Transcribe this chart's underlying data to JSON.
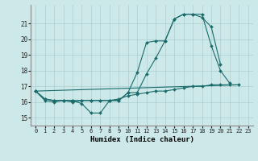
{
  "xlabel": "Humidex (Indice chaleur)",
  "xlim": [
    -0.5,
    23.5
  ],
  "ylim": [
    14.5,
    22.2
  ],
  "yticks": [
    15,
    16,
    17,
    18,
    19,
    20,
    21
  ],
  "xticks": [
    0,
    1,
    2,
    3,
    4,
    5,
    6,
    7,
    8,
    9,
    10,
    11,
    12,
    13,
    14,
    15,
    16,
    17,
    18,
    19,
    20,
    21,
    22,
    23
  ],
  "bg_color": "#cce8e8",
  "grid_color": "#aacfcf",
  "line_color": "#1a6b6b",
  "lines": [
    {
      "x": [
        0,
        1,
        2,
        3,
        4,
        5,
        6,
        7,
        8,
        9,
        10,
        11,
        12,
        13,
        14,
        15,
        16,
        17,
        18,
        19,
        20,
        21
      ],
      "y": [
        16.7,
        16.1,
        16.0,
        16.1,
        16.1,
        15.9,
        15.3,
        15.3,
        16.1,
        16.1,
        16.6,
        17.9,
        19.8,
        19.9,
        19.9,
        21.3,
        21.6,
        21.6,
        21.6,
        19.6,
        18.0,
        17.2
      ],
      "marker": true
    },
    {
      "x": [
        0,
        1,
        2,
        3,
        4,
        5,
        6,
        7,
        8,
        9,
        10,
        11,
        12,
        13,
        14,
        15,
        16,
        17,
        18,
        19,
        20
      ],
      "y": [
        16.7,
        16.2,
        16.1,
        16.1,
        16.0,
        16.1,
        16.1,
        16.1,
        16.1,
        16.1,
        16.6,
        16.6,
        17.8,
        18.8,
        19.9,
        21.3,
        21.6,
        21.6,
        21.4,
        20.8,
        18.4
      ],
      "marker": true
    },
    {
      "x": [
        0,
        1,
        2,
        3,
        4,
        5,
        6,
        7,
        8,
        9,
        10,
        11,
        12,
        13,
        14,
        15,
        16,
        17,
        18,
        19,
        20,
        21,
        22
      ],
      "y": [
        16.7,
        16.2,
        16.1,
        16.1,
        16.1,
        16.1,
        16.1,
        16.1,
        16.1,
        16.2,
        16.4,
        16.5,
        16.6,
        16.7,
        16.7,
        16.8,
        16.9,
        17.0,
        17.0,
        17.1,
        17.1,
        17.1,
        17.1
      ],
      "marker": true
    },
    {
      "x": [
        0,
        22
      ],
      "y": [
        16.7,
        17.1
      ],
      "marker": false
    }
  ]
}
